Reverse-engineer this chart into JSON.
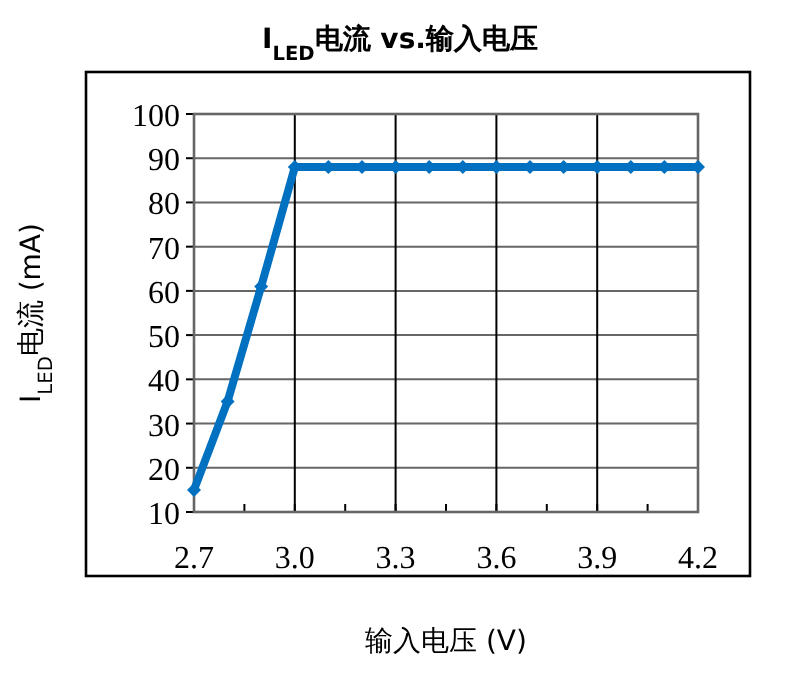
{
  "chart_data": {
    "type": "line",
    "title": "I$_{LED}$电流 vs.输入电压",
    "xlabel": "输入电压 (V)",
    "ylabel": "I$_{LED}$电流 (mA)",
    "x": [
      2.7,
      2.8,
      2.9,
      3.0,
      3.1,
      3.2,
      3.3,
      3.4,
      3.5,
      3.6,
      3.7,
      3.8,
      3.9,
      4.0,
      4.1,
      4.2
    ],
    "series": [
      {
        "color": "#0070c0",
        "values": [
          15,
          35,
          61,
          88,
          88,
          88,
          88,
          88,
          88,
          88,
          88,
          88,
          88,
          88,
          88,
          88
        ]
      }
    ],
    "xlim": [
      2.7,
      4.2
    ],
    "ylim": [
      10,
      100
    ],
    "xticks": [
      {
        "value": 2.7,
        "label": "2.7"
      },
      {
        "value": 2.85,
        "label": null
      },
      {
        "value": 3.0,
        "label": "3.0"
      },
      {
        "value": 3.15,
        "label": null
      },
      {
        "value": 3.3,
        "label": "3.3"
      },
      {
        "value": 3.45,
        "label": null
      },
      {
        "value": 3.6,
        "label": "3.6"
      },
      {
        "value": 3.75,
        "label": null
      },
      {
        "value": 3.9,
        "label": "3.9"
      },
      {
        "value": 4.05,
        "label": null
      },
      {
        "value": 4.2,
        "label": "4.2"
      }
    ],
    "yticks": [
      10,
      20,
      30,
      40,
      50,
      60,
      70,
      80,
      90,
      100
    ],
    "grid": true,
    "marker": "diamond",
    "line_style": "solid"
  }
}
